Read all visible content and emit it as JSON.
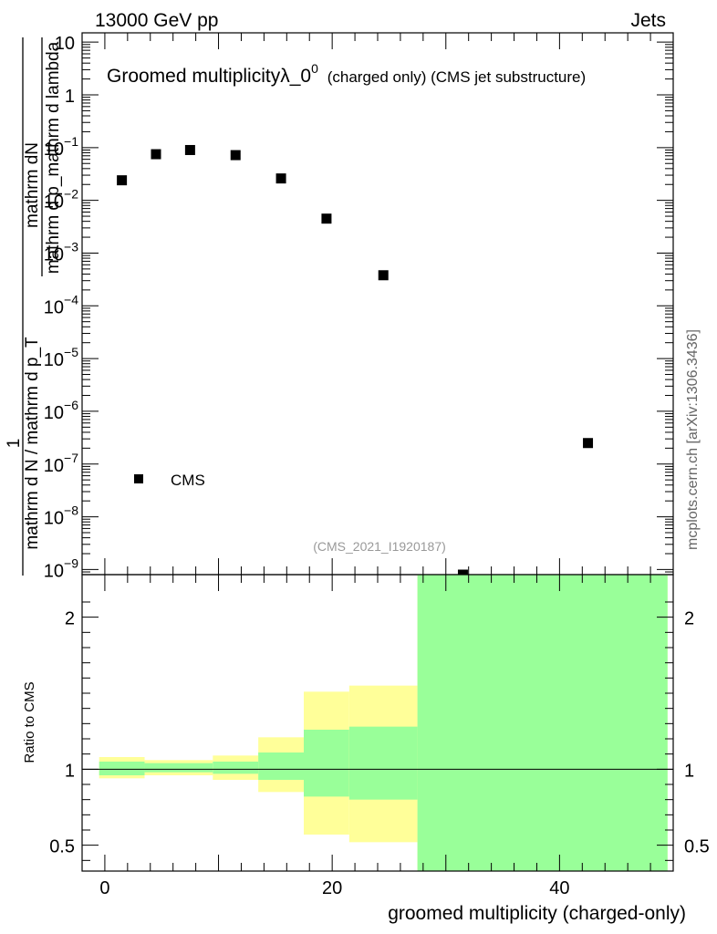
{
  "header": {
    "left": "13000 GeV pp",
    "right": "Jets"
  },
  "side_label": "mcplots.cern.ch [arXiv:1306.3436]",
  "chart_data": [
    {
      "type": "scatter",
      "title": "Groomed multiplicityλ_0",
      "title_sup": "0",
      "title_suffix": "(charged only) (CMS jet substructure)",
      "ylabel_numerator": "mathrm dN",
      "ylabel_denominator": "mathrm d p_mathrm d lambda",
      "ylabel_prefix_numerator": "1",
      "ylabel_prefix_denominator": "mathrm d N / mathrm d p_T",
      "yscale": "log",
      "xlim": [
        -2,
        50
      ],
      "ylim": [
        8e-10,
        15
      ],
      "y_ticks": [
        {
          "value": 10,
          "label": "10"
        },
        {
          "value": 1,
          "label": "1"
        },
        {
          "value": 0.1,
          "label": "10",
          "exp": "−1"
        },
        {
          "value": 0.01,
          "label": "10",
          "exp": "−2"
        },
        {
          "value": 0.001,
          "label": "10",
          "exp": "−3"
        },
        {
          "value": 0.0001,
          "label": "10",
          "exp": "−4"
        },
        {
          "value": 1e-05,
          "label": "10",
          "exp": "−5"
        },
        {
          "value": 1e-06,
          "label": "10",
          "exp": "−6"
        },
        {
          "value": 1e-07,
          "label": "10",
          "exp": "−7"
        },
        {
          "value": 1e-08,
          "label": "10",
          "exp": "−8"
        },
        {
          "value": 1e-09,
          "label": "10",
          "exp": "−9"
        }
      ],
      "series": [
        {
          "name": "CMS",
          "marker": "square",
          "color": "#000000",
          "points": [
            {
              "x": 1.5,
              "y": 0.024
            },
            {
              "x": 4.5,
              "y": 0.075
            },
            {
              "x": 7.5,
              "y": 0.09
            },
            {
              "x": 11.5,
              "y": 0.072
            },
            {
              "x": 15.5,
              "y": 0.026
            },
            {
              "x": 19.5,
              "y": 0.0045
            },
            {
              "x": 24.5,
              "y": 0.00038
            },
            {
              "x": 31.5,
              "y": 8e-10
            },
            {
              "x": 42.5,
              "y": 2.5e-07
            }
          ]
        }
      ],
      "legend": {
        "placement": "lower-left",
        "entries": [
          "CMS"
        ]
      },
      "annotation": "(CMS_2021_I1920187)"
    },
    {
      "type": "area",
      "ylabel": "Ratio to CMS",
      "xlabel": "groomed multiplicity (charged-only)",
      "xlim": [
        -2,
        50
      ],
      "ylim": [
        0.33,
        2.28
      ],
      "x_ticks": [
        {
          "value": 0,
          "label": "0"
        },
        {
          "value": 20,
          "label": "20"
        },
        {
          "value": 40,
          "label": "40"
        }
      ],
      "y_ticks": [
        {
          "value": 0.5,
          "label": "0.5"
        },
        {
          "value": 1,
          "label": "1"
        },
        {
          "value": 2,
          "label": "2"
        }
      ],
      "reference_line": 1,
      "band_colors": {
        "outer": "#ffff99",
        "inner": "#99ff99"
      },
      "bands": [
        {
          "x0": -0.5,
          "x1": 3.5,
          "outer": [
            0.94,
            1.08
          ],
          "inner": [
            0.96,
            1.05
          ]
        },
        {
          "x0": 3.5,
          "x1": 9.5,
          "outer": [
            0.96,
            1.06
          ],
          "inner": [
            0.98,
            1.04
          ]
        },
        {
          "x0": 9.5,
          "x1": 13.5,
          "outer": [
            0.93,
            1.09
          ],
          "inner": [
            0.97,
            1.05
          ]
        },
        {
          "x0": 13.5,
          "x1": 17.5,
          "outer": [
            0.85,
            1.21
          ],
          "inner": [
            0.93,
            1.11
          ]
        },
        {
          "x0": 17.5,
          "x1": 21.5,
          "outer": [
            0.57,
            1.51
          ],
          "inner": [
            0.82,
            1.26
          ]
        },
        {
          "x0": 21.5,
          "x1": 27.5,
          "outer": [
            0.52,
            1.55
          ],
          "inner": [
            0.8,
            1.28
          ]
        },
        {
          "x0": 27.5,
          "x1": 49.5,
          "outer": [
            0.33,
            2.28
          ],
          "inner": [
            0.33,
            2.28
          ]
        }
      ]
    }
  ]
}
